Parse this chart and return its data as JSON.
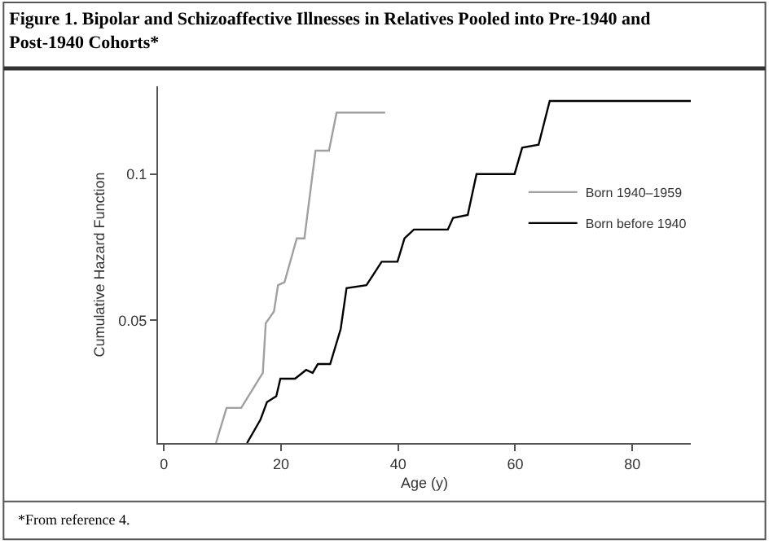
{
  "chart_data": {
    "type": "line",
    "title": "Figure 1. Bipolar and Schizoaffective Illnesses in Relatives Pooled into Pre-1940 and Post-1940 Cohorts*",
    "xlabel": "Age (y)",
    "ylabel": "Cumulative Hazard Function",
    "annotations": [
      "*From reference 4."
    ],
    "xlim": [
      -1,
      90
    ],
    "xticks": [
      0,
      20,
      40,
      60,
      80
    ],
    "ylim": [
      0.008,
      0.13
    ],
    "yticks": [
      0.05,
      0.1
    ],
    "legend": "right",
    "marker": "none",
    "line_style": "solid",
    "series": [
      {
        "name": "Born 1940–1959",
        "color": "#a0a0a0",
        "x": [
          8.9,
          10.7,
          13.2,
          16.9,
          17.4,
          18.8,
          19.5,
          20.6,
          22.7,
          24.0,
          25.9,
          28.2,
          29.5,
          37.8
        ],
        "values": [
          0.008,
          0.02,
          0.02,
          0.032,
          0.049,
          0.053,
          0.062,
          0.063,
          0.078,
          0.078,
          0.108,
          0.108,
          0.121,
          0.121
        ]
      },
      {
        "name": "Born before 1940",
        "color": "#000000",
        "x": [
          14.2,
          16.5,
          17.6,
          19.2,
          19.9,
          22.4,
          24.3,
          25.4,
          26.3,
          28.4,
          30.2,
          31.2,
          34.6,
          37.2,
          39.9,
          41.1,
          42.7,
          48.5,
          49.4,
          51.9,
          53.4,
          59.9,
          61.2,
          64.0,
          65.9,
          90.0
        ],
        "values": [
          0.008,
          0.016,
          0.022,
          0.024,
          0.03,
          0.03,
          0.033,
          0.032,
          0.035,
          0.035,
          0.047,
          0.061,
          0.062,
          0.07,
          0.07,
          0.078,
          0.081,
          0.081,
          0.085,
          0.086,
          0.1,
          0.1,
          0.109,
          0.11,
          0.125,
          0.125
        ]
      }
    ]
  }
}
